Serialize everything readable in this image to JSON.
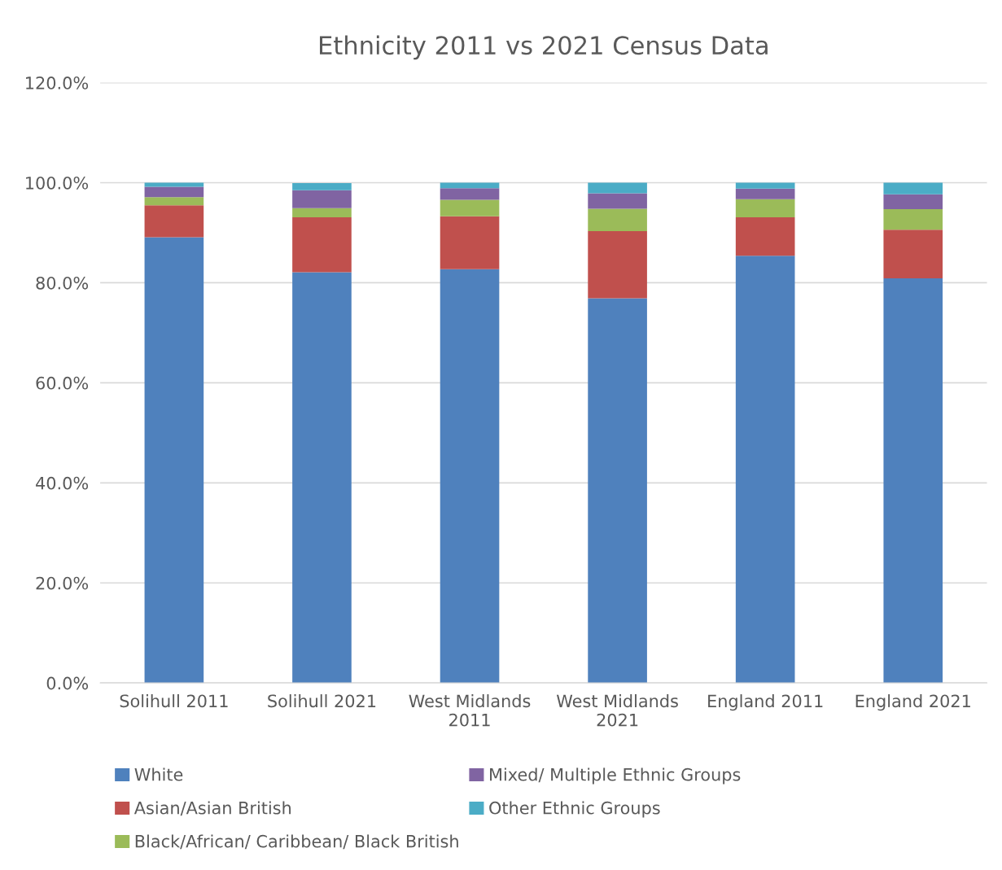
{
  "chart_data": {
    "type": "bar",
    "stacked": true,
    "title": "Ethnicity 2011 vs 2021 Census Data",
    "categories": [
      "Solihull 2011",
      "Solihull 2021",
      "West Midlands\n2011",
      "West Midlands\n2021",
      "England 2011",
      "England 2021"
    ],
    "series": [
      {
        "name": "White",
        "color": "#4f81bd",
        "values": [
          89.1,
          82.1,
          82.7,
          76.9,
          85.4,
          80.9
        ]
      },
      {
        "name": "Asian/Asian British",
        "color": "#c0504d",
        "values": [
          6.4,
          11.0,
          10.6,
          13.4,
          7.7,
          9.7
        ]
      },
      {
        "name": "Black/African/ Caribbean/ Black British",
        "color": "#9bbb59",
        "values": [
          1.6,
          1.8,
          3.3,
          4.5,
          3.6,
          4.1
        ]
      },
      {
        "name": "Mixed/ Multiple Ethnic Groups",
        "color": "#8064a2",
        "values": [
          2.1,
          3.6,
          2.3,
          3.1,
          2.1,
          3.0
        ]
      },
      {
        "name": "Other Ethnic Groups",
        "color": "#4bacc6",
        "values": [
          0.8,
          1.4,
          1.1,
          2.1,
          1.2,
          2.3
        ]
      }
    ],
    "ylim": [
      0,
      120
    ],
    "yticks": [
      {
        "value": 0,
        "label": "0.0%"
      },
      {
        "value": 20,
        "label": "20.0%"
      },
      {
        "value": 40,
        "label": "40.0%"
      },
      {
        "value": 60,
        "label": "60.0%"
      },
      {
        "value": 80,
        "label": "80.0%"
      },
      {
        "value": 100,
        "label": "100.0%"
      },
      {
        "value": 120,
        "label": "120.0%"
      }
    ],
    "grid": "y",
    "legend": "bottom"
  }
}
